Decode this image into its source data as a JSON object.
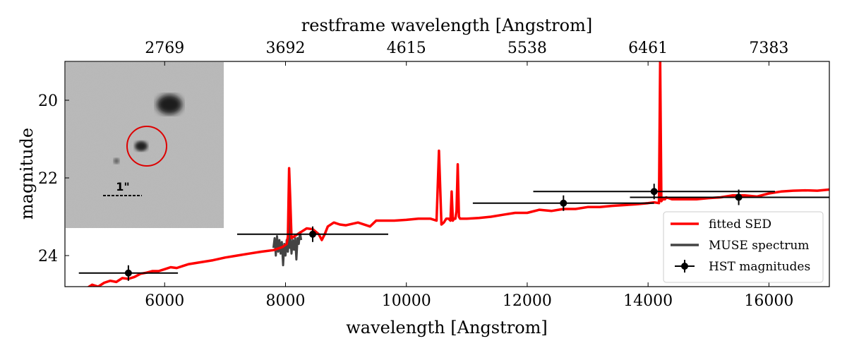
{
  "chart_data": {
    "type": "line",
    "title": "",
    "xlabel": "wavelength [Angstrom]",
    "ylabel": "magnitude",
    "top_xlabel": "restframe wavelength [Angstrom]",
    "xlim": [
      4350,
      17000
    ],
    "ylim": [
      24.8,
      19.0
    ],
    "x_ticks": [
      6000,
      8000,
      10000,
      12000,
      14000,
      16000
    ],
    "y_ticks": [
      20,
      22,
      24
    ],
    "top_ticks": [
      {
        "x": 6000,
        "label": "2769"
      },
      {
        "x": 8000,
        "label": "3692"
      },
      {
        "x": 10000,
        "label": "4615"
      },
      {
        "x": 12000,
        "label": "5538"
      },
      {
        "x": 14000,
        "label": "6461"
      },
      {
        "x": 16000,
        "label": "7383"
      }
    ],
    "series": [
      {
        "name": "fitted SED",
        "color": "#ff0000",
        "x": [
          4700,
          4800,
          4900,
          5000,
          5100,
          5200,
          5300,
          5400,
          5500,
          5600,
          5700,
          5800,
          5900,
          6000,
          6100,
          6200,
          6300,
          6400,
          6600,
          6800,
          7000,
          7200,
          7400,
          7600,
          7800,
          7950,
          8020,
          8040,
          8060,
          8080,
          8100,
          8150,
          8250,
          8350,
          8450,
          8550,
          8600,
          8650,
          8700,
          8800,
          8900,
          9000,
          9200,
          9400,
          9500,
          9600,
          9800,
          10000,
          10200,
          10400,
          10500,
          10540,
          10580,
          10620,
          10660,
          10700,
          10730,
          10750,
          10770,
          10790,
          10810,
          10830,
          10850,
          10870,
          10890,
          10950,
          11000,
          11200,
          11400,
          11600,
          11800,
          12000,
          12200,
          12400,
          12600,
          12800,
          13000,
          13200,
          13400,
          13600,
          13800,
          14000,
          14100,
          14180,
          14200,
          14220,
          14240,
          14260,
          14280,
          14300,
          14400,
          14600,
          14800,
          15000,
          15200,
          15400,
          15600,
          15800,
          16000,
          16200,
          16400,
          16600,
          16800,
          17000
        ],
        "y": [
          24.85,
          24.75,
          24.8,
          24.7,
          24.65,
          24.68,
          24.58,
          24.6,
          24.55,
          24.47,
          24.44,
          24.4,
          24.4,
          24.35,
          24.3,
          24.32,
          24.27,
          24.22,
          24.17,
          24.12,
          24.05,
          24.0,
          23.95,
          23.9,
          23.86,
          23.78,
          23.7,
          23.5,
          21.75,
          22.6,
          23.55,
          23.5,
          23.4,
          23.3,
          23.32,
          23.45,
          23.6,
          23.45,
          23.25,
          23.15,
          23.2,
          23.22,
          23.15,
          23.25,
          23.1,
          23.1,
          23.1,
          23.08,
          23.05,
          23.05,
          23.1,
          21.3,
          23.2,
          23.15,
          23.05,
          23.05,
          23.1,
          22.35,
          23.1,
          23.05,
          23.05,
          22.85,
          21.65,
          23.0,
          23.05,
          23.05,
          23.05,
          23.03,
          23.0,
          22.95,
          22.9,
          22.9,
          22.82,
          22.85,
          22.8,
          22.8,
          22.75,
          22.75,
          22.72,
          22.7,
          22.68,
          22.65,
          22.63,
          22.65,
          19.0,
          22.6,
          22.55,
          22.55,
          22.55,
          22.5,
          22.55,
          22.55,
          22.55,
          22.52,
          22.5,
          22.45,
          22.45,
          22.48,
          22.4,
          22.35,
          22.33,
          22.32,
          22.33,
          22.3
        ]
      },
      {
        "name": "MUSE spectrum",
        "color": "#444444",
        "x": [
          7800,
          7820,
          7840,
          7860,
          7880,
          7900,
          7920,
          7940,
          7960,
          7980,
          8000,
          8020,
          8040,
          8055,
          8060,
          8065,
          8070,
          8080,
          8100,
          8120,
          8140,
          8160,
          8180,
          8200,
          8220,
          8240,
          8260
        ],
        "y": [
          23.8,
          23.55,
          24.0,
          23.5,
          23.9,
          23.6,
          23.95,
          23.65,
          24.25,
          23.7,
          24.0,
          23.6,
          23.9,
          23.5,
          22.05,
          23.3,
          23.8,
          23.55,
          23.95,
          23.6,
          23.85,
          23.55,
          24.1,
          23.55,
          23.7,
          23.4,
          23.6
        ]
      }
    ],
    "hst_points": {
      "name": "HST magnitudes",
      "color": "#000000",
      "points": [
        {
          "x": 5400,
          "y": 24.45,
          "xerr": 820,
          "yerr": 0.2
        },
        {
          "x": 8450,
          "y": 23.45,
          "xerr": 1250,
          "yerr": 0.2
        },
        {
          "x": 12600,
          "y": 22.65,
          "xerr": 1500,
          "yerr": 0.2
        },
        {
          "x": 14100,
          "y": 22.35,
          "xerr": 2000,
          "yerr": 0.2
        },
        {
          "x": 15500,
          "y": 22.5,
          "xerr": 1800,
          "yerr": 0.2
        }
      ]
    },
    "legend": {
      "position": "lower-right",
      "entries": [
        {
          "label": "fitted SED",
          "kind": "line",
          "color": "#ff0000"
        },
        {
          "label": "MUSE spectrum",
          "kind": "line",
          "color": "#444444"
        },
        {
          "label": "HST magnitudes",
          "kind": "errorbar",
          "color": "#000000"
        }
      ]
    },
    "inset": {
      "description_kind": "grayscale image cutout",
      "scale_label": "1\"",
      "circle_color": "#dd0000"
    }
  }
}
